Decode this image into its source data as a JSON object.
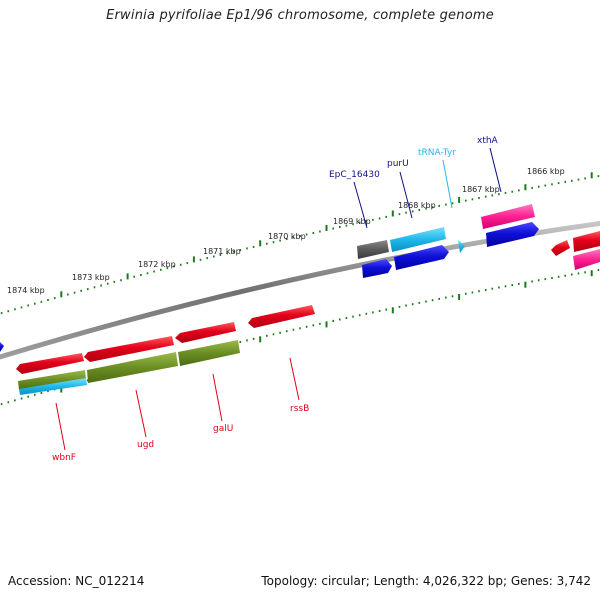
{
  "title": "Erwinia pyrifoliae Ep1/96 chromosome, complete genome",
  "footer": {
    "accession": "Accession: NC_012214",
    "topology": "Topology: circular; Length: 4,026,322 bp; Genes: 3,742"
  },
  "colors": {
    "backbone": "#8a8a8a",
    "ticks": "#1a7a1a",
    "forward_gene": "#e3001b",
    "reverse_gene": "#1010d8",
    "trna": "#1eb8e8",
    "magenta_gene": "#ff2090",
    "olive_gene": "#6b8e23",
    "grey_gene": "#5a5a5a",
    "label_forward": "#e3001b",
    "label_reverse": "#10108a",
    "label_trna": "#1eb8e8"
  },
  "ruler_labels": [
    "1874 kbp",
    "1873 kbp",
    "1872 kbp",
    "1871 kbp",
    "1870 kbp",
    "1869 kbp",
    "1868 kbp",
    "1867 kbp",
    "1866 kbp"
  ],
  "gene_labels_top": [
    {
      "name": "EpC_16430",
      "color": "#10108a"
    },
    {
      "name": "purU",
      "color": "#10108a"
    },
    {
      "name": "tRNA-Tyr",
      "color": "#1eb8e8"
    },
    {
      "name": "xthA",
      "color": "#10108a"
    }
  ],
  "gene_labels_bottom": [
    {
      "name": "wbnF",
      "color": "#e3001b"
    },
    {
      "name": "ugd",
      "color": "#e3001b"
    },
    {
      "name": "galU",
      "color": "#e3001b"
    },
    {
      "name": "rssB",
      "color": "#e3001b"
    }
  ]
}
